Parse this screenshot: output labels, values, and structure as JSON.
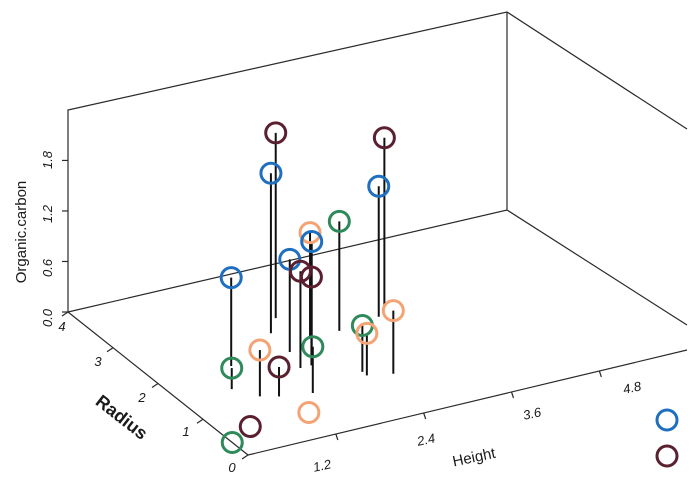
{
  "chart_data": {
    "type": "scatter",
    "subtype": "3d-scatter-with-drop-lines",
    "title": "",
    "xlabel": "Height",
    "ylabel": "Radius",
    "zlabel": "Organic.carbon",
    "x_ticks": [
      "1.2",
      "2.4",
      "3.6",
      "4.8"
    ],
    "y_ticks": [
      "0",
      "1",
      "2",
      "3",
      "4"
    ],
    "z_ticks": [
      "0.0",
      "0.6",
      "1.2",
      "1.8"
    ],
    "xlim": [
      0,
      6
    ],
    "ylim": [
      0,
      4
    ],
    "zlim": [
      0,
      2.4
    ],
    "grid": false,
    "legend_position": "bottom-right (partially cropped)",
    "series": [
      {
        "color": "#1f6fc0",
        "points": [
          {
            "x": 1.0,
            "y": 2.0,
            "z": 1.05
          },
          {
            "x": 1.85,
            "y": 2.5,
            "z": 1.9
          },
          {
            "x": 1.8,
            "y": 2.0,
            "z": 1.1
          },
          {
            "x": 2.1,
            "y": 2.0,
            "z": 1.25
          },
          {
            "x": 3.2,
            "y": 2.3,
            "z": 1.55
          }
        ]
      },
      {
        "color": "#5a2030",
        "points": [
          {
            "x": 0.4,
            "y": 0.6,
            "z": 0.0
          },
          {
            "x": 1.1,
            "y": 1.1,
            "z": 0.35
          },
          {
            "x": 2.1,
            "y": 2.8,
            "z": 2.2
          },
          {
            "x": 1.7,
            "y": 1.6,
            "z": 1.15
          },
          {
            "x": 1.85,
            "y": 1.6,
            "z": 1.05
          },
          {
            "x": 3.4,
            "y": 2.5,
            "z": 2.0
          }
        ]
      },
      {
        "color": "#2e8a5a",
        "points": [
          {
            "x": 0.0,
            "y": 0.35,
            "z": 0.0
          },
          {
            "x": 0.7,
            "y": 1.5,
            "z": 0.25
          },
          {
            "x": 1.5,
            "y": 1.0,
            "z": 0.55
          },
          {
            "x": 2.3,
            "y": 1.2,
            "z": 0.55
          },
          {
            "x": 2.6,
            "y": 2.2,
            "z": 1.3
          }
        ]
      },
      {
        "color": "#f4a374",
        "points": [
          {
            "x": 0.9,
            "y": 1.2,
            "z": 0.55
          },
          {
            "x": 1.2,
            "y": 0.6,
            "z": 0.0
          },
          {
            "x": 2.3,
            "y": 1.1,
            "z": 0.5
          },
          {
            "x": 2.6,
            "y": 1.0,
            "z": 0.75
          },
          {
            "x": 2.2,
            "y": 2.2,
            "z": 1.25
          }
        ]
      }
    ],
    "legend": [
      {
        "color": "#1f6fc0"
      },
      {
        "color": "#5a2030"
      }
    ]
  }
}
